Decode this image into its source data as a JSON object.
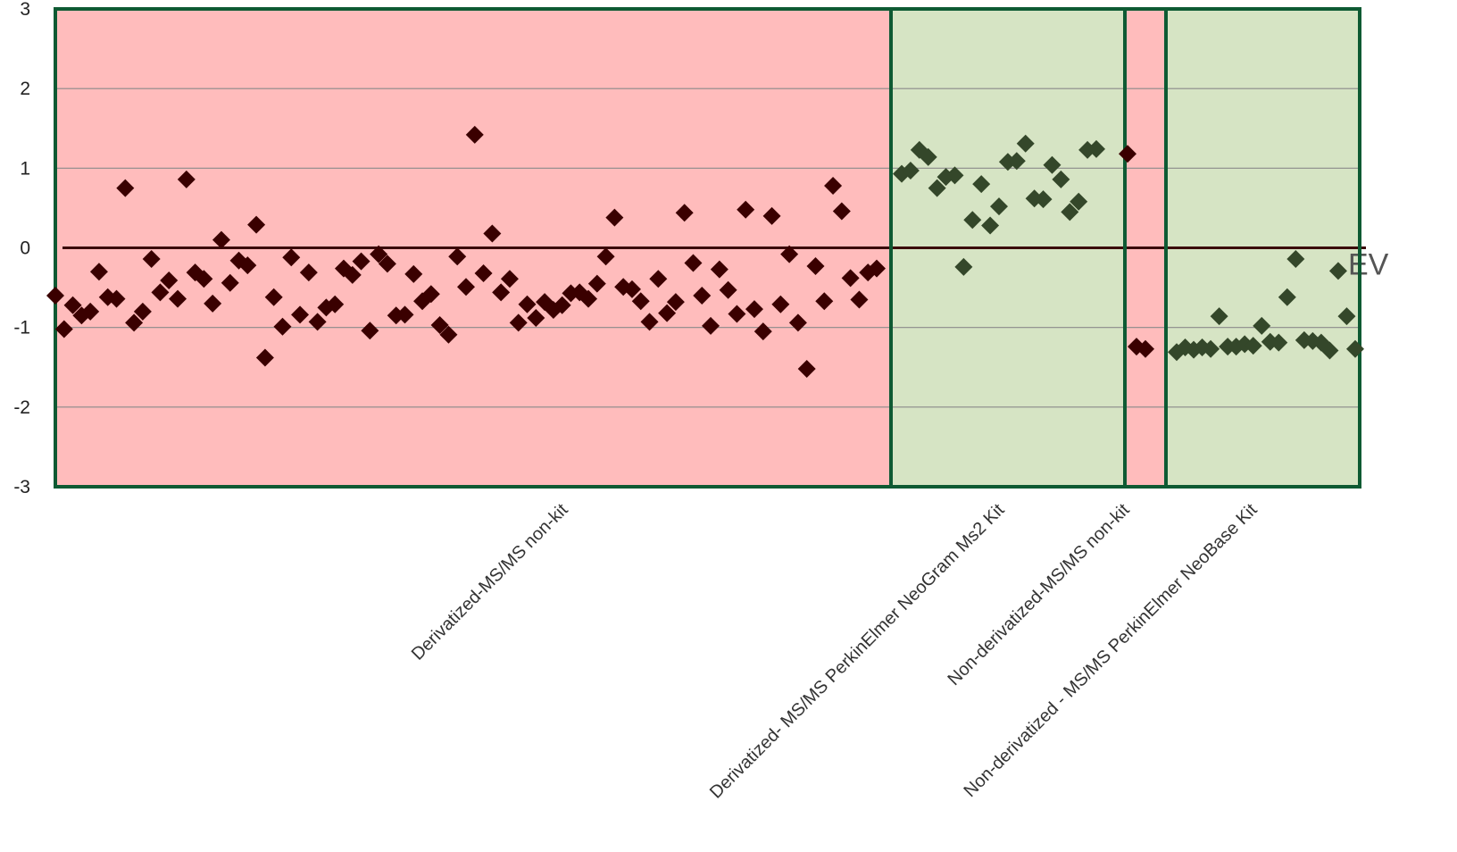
{
  "chart_data": {
    "type": "scatter",
    "ylim": [
      -3,
      3
    ],
    "yticks": [
      "3",
      "2",
      "1",
      "0",
      "-1",
      "-2",
      "-3"
    ],
    "grid": true,
    "reference_line": {
      "y": 0,
      "label": "EV"
    },
    "colors": {
      "non_compliant_band": "#ffbcbc",
      "compliant_band": "#d6e4c4",
      "border": "#0e5a33",
      "marker_red_group": "#3a0000",
      "marker_green_group": "#34472a",
      "gridline": "#8a8a8a",
      "reference_line": "#3a0a0a"
    },
    "groups": [
      {
        "name": "Derivatized-MS/MS non-kit",
        "band": "non_compliant",
        "values": [
          -0.6,
          -1.02,
          -0.72,
          -0.85,
          -0.8,
          -0.3,
          -0.62,
          -0.64,
          0.75,
          -0.94,
          -0.8,
          -0.14,
          -0.56,
          -0.41,
          -0.64,
          0.86,
          -0.31,
          -0.39,
          -0.7,
          0.1,
          -0.44,
          -0.16,
          -0.22,
          0.29,
          -1.38,
          -0.62,
          -0.99,
          -0.12,
          -0.84,
          -0.31,
          -0.93,
          -0.75,
          -0.71,
          -0.26,
          -0.34,
          -0.17,
          -1.04,
          -0.08,
          -0.2,
          -0.85,
          -0.84,
          -0.33,
          -0.67,
          -0.58,
          -0.97,
          -1.09,
          -0.11,
          -0.49,
          1.42,
          -0.32,
          0.18,
          -0.56,
          -0.39,
          -0.94,
          -0.71,
          -0.88,
          -0.68,
          -0.78,
          -0.72,
          -0.57,
          -0.56,
          -0.64,
          -0.45,
          -0.11,
          0.38,
          -0.49,
          -0.52,
          -0.67,
          -0.93,
          -0.39,
          -0.82,
          -0.68,
          0.44,
          -0.19,
          -0.6,
          -0.98,
          -0.27,
          -0.53,
          -0.83,
          0.48,
          -0.77,
          -1.05,
          0.4,
          -0.71,
          -0.08,
          -0.94,
          -1.52,
          -0.23,
          -0.67,
          0.78,
          0.46,
          -0.38,
          -0.65,
          -0.31,
          -0.26
        ]
      },
      {
        "name": "Derivatized- MS/MS PerkinElmer NeoGram Ms2 Kit",
        "band": "compliant",
        "values": [
          0.93,
          0.97,
          1.23,
          1.14,
          0.75,
          0.89,
          0.91,
          -0.24,
          0.35,
          0.8,
          0.28,
          0.52,
          1.08,
          1.09,
          1.31,
          0.62,
          0.61,
          1.04,
          0.86,
          0.45,
          0.58,
          1.23,
          1.24
        ]
      },
      {
        "name": "Non-derivatized-MS/MS non-kit",
        "band": "non_compliant",
        "values": [
          1.18,
          -1.24,
          -1.27
        ]
      },
      {
        "name": "Non-derivatized - MS/MS PerkinElmer NeoBase Kit",
        "band": "compliant",
        "values": [
          -1.31,
          -1.25,
          -1.28,
          -1.25,
          -1.27,
          -0.86,
          -1.24,
          -1.24,
          -1.21,
          -1.23,
          -0.98,
          -1.18,
          -1.19,
          -0.62,
          -0.14,
          -1.16,
          -1.17,
          -1.19,
          -1.29,
          -0.29,
          -0.86,
          -1.27
        ]
      }
    ]
  }
}
